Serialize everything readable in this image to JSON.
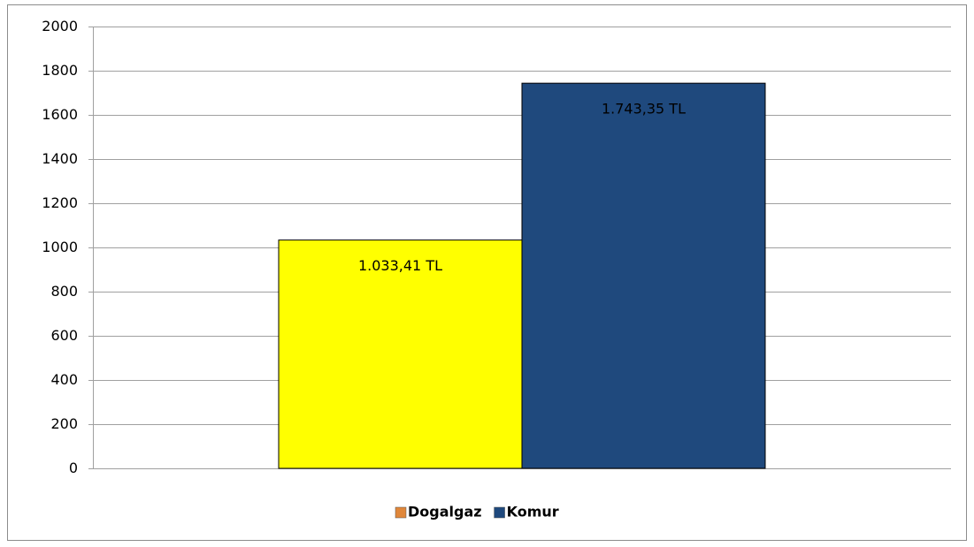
{
  "chart_data": {
    "type": "bar",
    "categories": [
      null
    ],
    "series": [
      {
        "name": "Dogalgaz",
        "color": "#ffff00",
        "legend_color": "#e0873a",
        "values": [
          1033.41
        ],
        "value_labels": [
          "1.033,41 TL"
        ]
      },
      {
        "name": "Komur",
        "color": "#1f497d",
        "legend_color": "#1f497d",
        "values": [
          1743.35
        ],
        "value_labels": [
          "1.743,35 TL"
        ]
      }
    ],
    "ylim": [
      0,
      2000
    ],
    "yticks": [
      0,
      200,
      400,
      600,
      800,
      1000,
      1200,
      1400,
      1600,
      1800,
      2000
    ],
    "grid": true,
    "legend": "bottom"
  }
}
